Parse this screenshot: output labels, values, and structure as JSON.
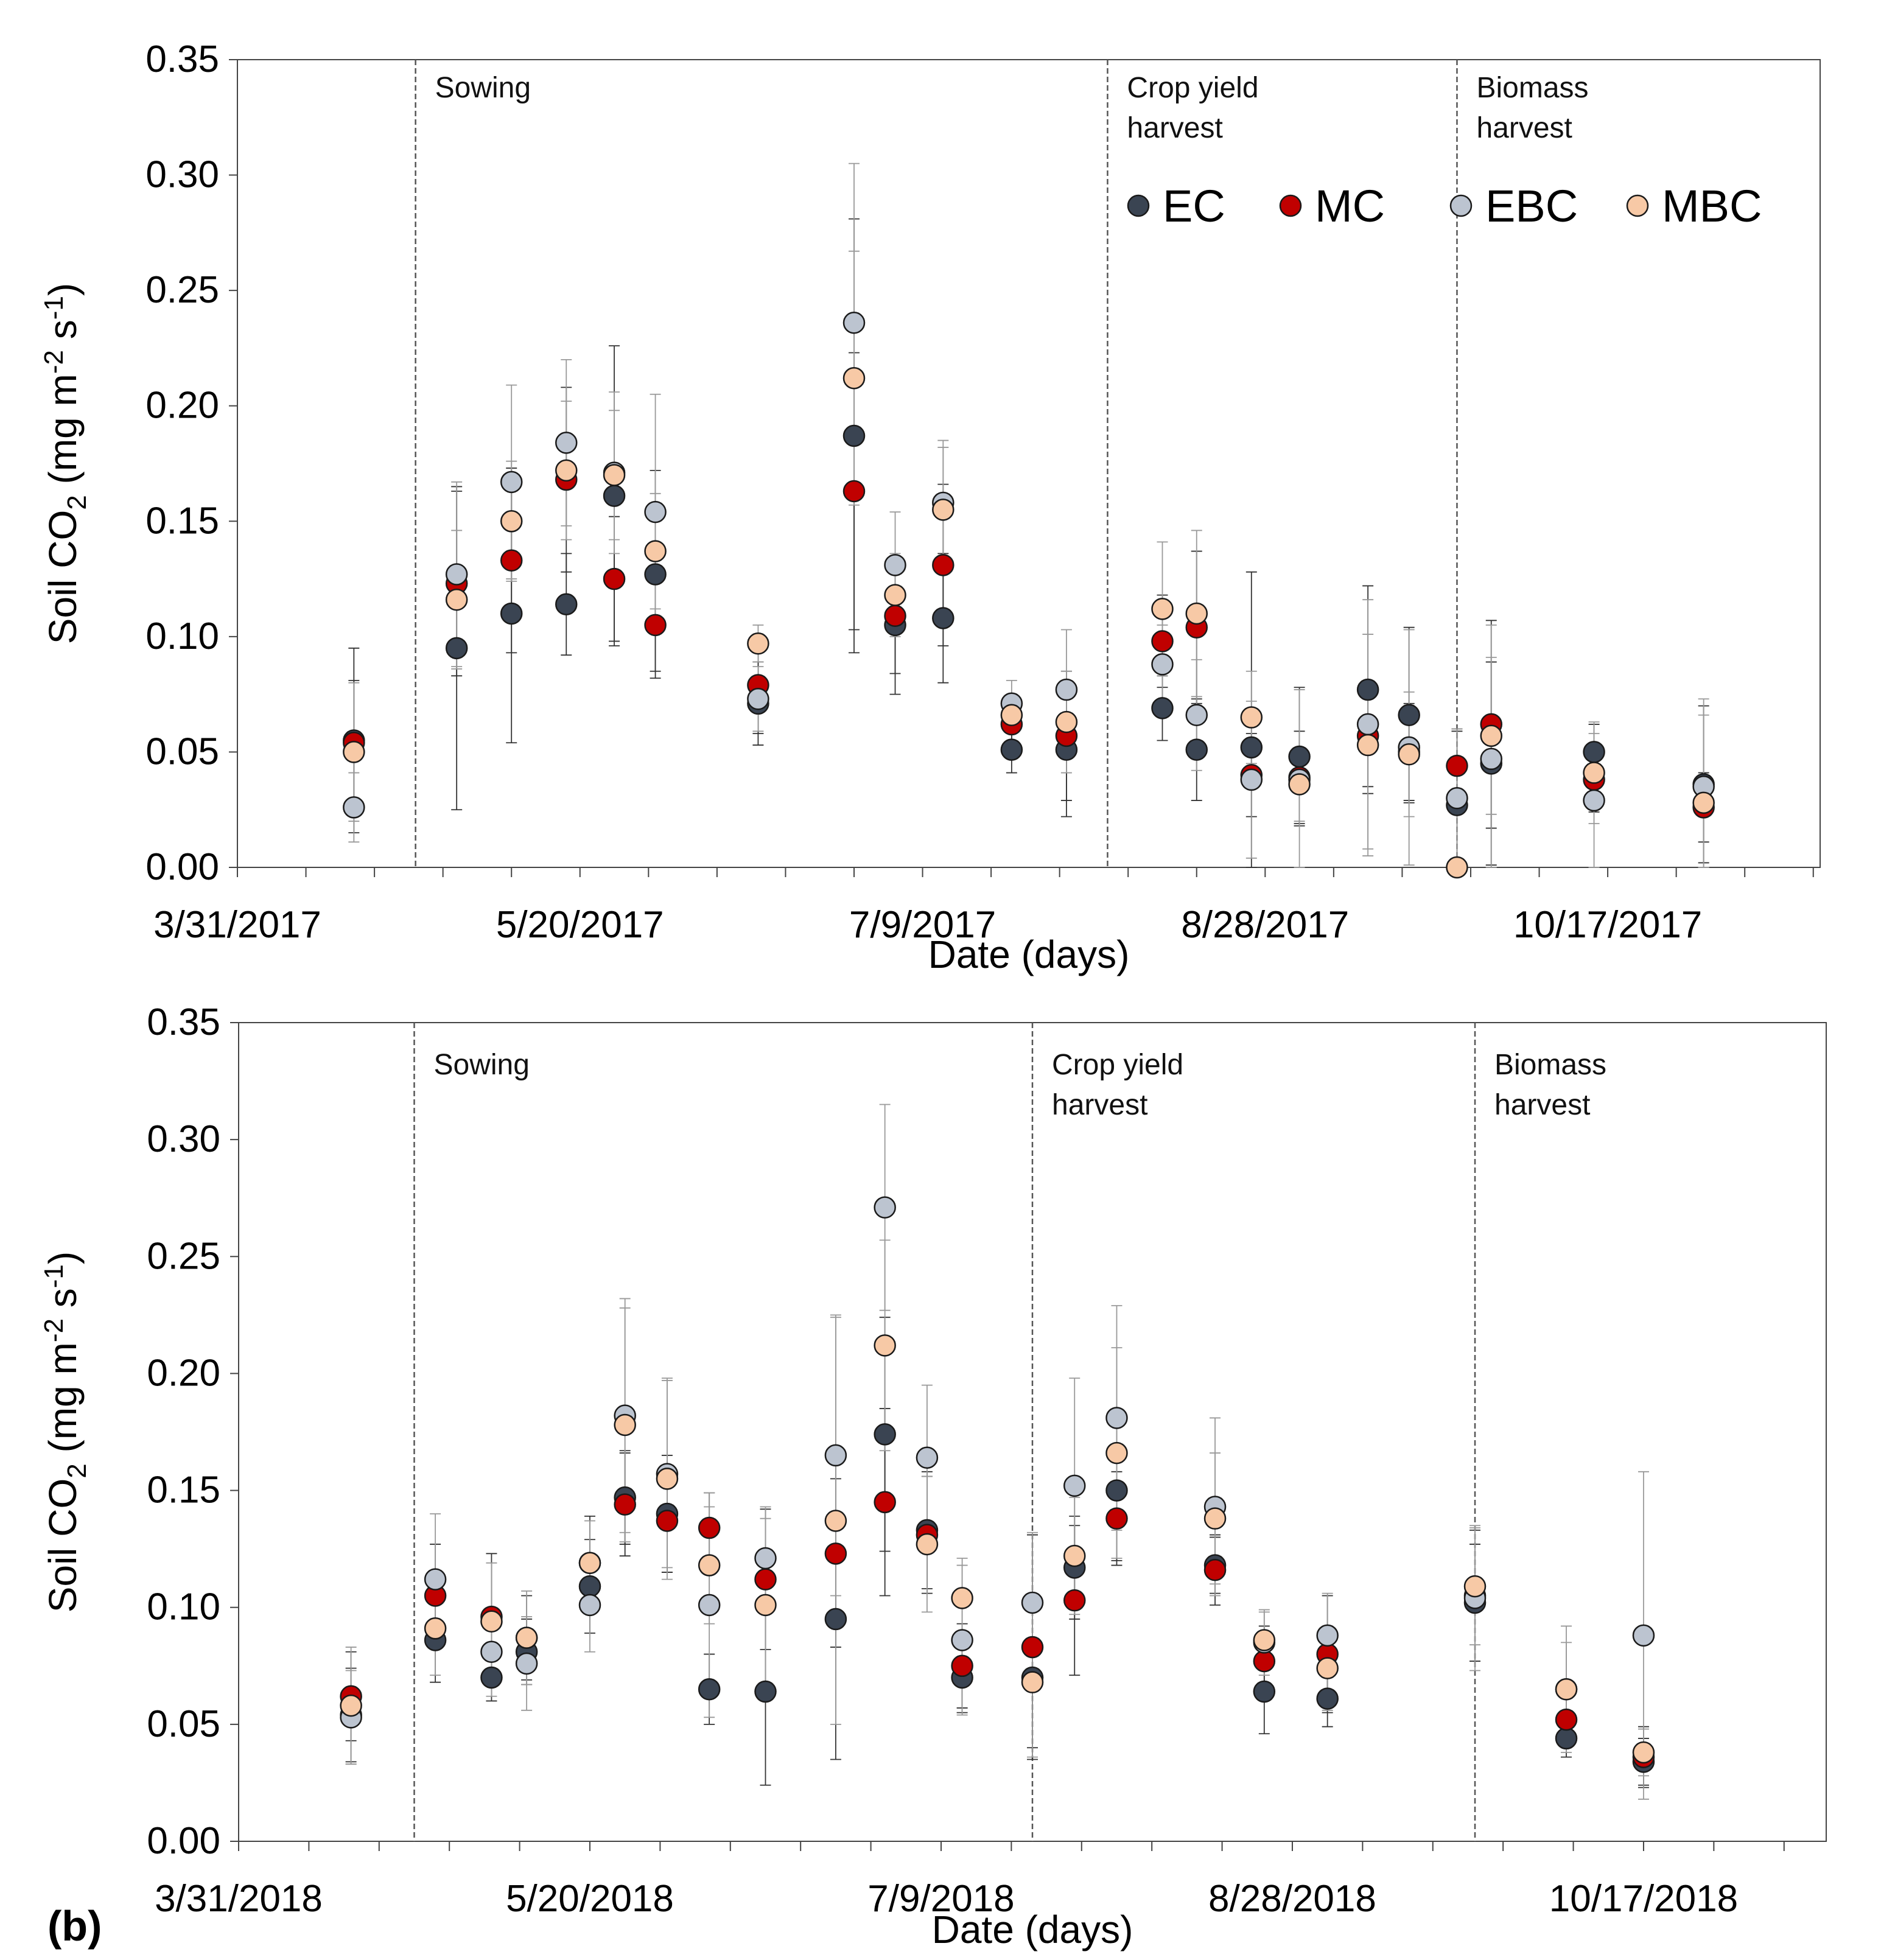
{
  "figure": {
    "panel_b_label": "(b)"
  },
  "series_meta": [
    {
      "name": "EC",
      "color": "#3a4452"
    },
    {
      "name": "MC",
      "color": "#c00000"
    },
    {
      "name": "EBC",
      "color": "#bcc4d0"
    },
    {
      "name": "MBC",
      "color": "#f7c9a6"
    }
  ],
  "chart_data": [
    {
      "type": "scatter",
      "title": "",
      "xlabel": "Date (days)",
      "ylabel": "Soil CO2 (mg m-2 s-1)",
      "ylabel_main": "Soil CO",
      "ylabel_sub": "2",
      "ylabel_units_a": " (mg m",
      "ylabel_sup1": "-2",
      "ylabel_units_b": " s",
      "ylabel_sup2": "-1",
      "ylabel_units_c": ")",
      "xlim": [
        "2017-03-31",
        "2017-11-17"
      ],
      "ylim": [
        0,
        0.35
      ],
      "y_ticks": [
        "0.00",
        "0.05",
        "0.10",
        "0.15",
        "0.20",
        "0.25",
        "0.30",
        "0.35"
      ],
      "x_ticks": [
        "3/31/2017",
        "5/20/2017",
        "7/9/2017",
        "8/28/2017",
        "10/17/2017"
      ],
      "events": [
        {
          "date": "2017-04-26",
          "line1": "Sowing",
          "line2": ""
        },
        {
          "date": "2017-08-05",
          "line1": "Crop yield",
          "line2": "harvest"
        },
        {
          "date": "2017-09-25",
          "line1": "Biomass",
          "line2": "harvest"
        }
      ],
      "legend": [
        "EC",
        "MC",
        "EBC",
        "MBC"
      ],
      "dates": [
        "2017-04-17",
        "2017-05-02",
        "2017-05-10",
        "2017-05-18",
        "2017-05-25",
        "2017-05-31",
        "2017-06-15",
        "2017-06-29",
        "2017-07-05",
        "2017-07-12",
        "2017-07-22",
        "2017-07-30",
        "2017-08-13",
        "2017-08-18",
        "2017-08-26",
        "2017-09-02",
        "2017-09-12",
        "2017-09-18",
        "2017-09-25",
        "2017-09-30",
        "2017-10-15",
        "2017-10-31"
      ],
      "series": [
        {
          "name": "EC",
          "values": [
            0.055,
            0.095,
            0.11,
            0.114,
            0.161,
            0.127,
            0.071,
            0.187,
            0.105,
            0.108,
            0.051,
            0.051,
            0.069,
            0.051,
            0.052,
            0.048,
            0.077,
            0.066,
            0.027,
            0.045,
            0.05,
            0.036
          ],
          "errors": [
            0.04,
            0.07,
            0.056,
            0.022,
            0.065,
            0.045,
            0.018,
            0.094,
            0.03,
            0.028,
            0.01,
            0.029,
            0.014,
            0.022,
            0.076,
            0.03,
            0.045,
            0.038,
            0.032,
            0.044,
            0.012,
            0.034
          ]
        },
        {
          "name": "MC",
          "values": [
            0.054,
            0.123,
            0.133,
            0.168,
            0.125,
            0.105,
            0.079,
            0.163,
            0.109,
            0.131,
            0.062,
            0.057,
            0.098,
            0.104,
            0.04,
            0.039,
            0.057,
            0.05,
            0.044,
            0.062,
            0.038,
            0.026
          ],
          "errors": [
            0.027,
            0.04,
            0.04,
            0.04,
            0.027,
            0.02,
            0.021,
            0.06,
            0.025,
            0.035,
            0.01,
            0.028,
            0.02,
            0.033,
            0.018,
            0.02,
            0.022,
            0.021,
            0.016,
            0.045,
            0.014,
            0.015
          ]
        },
        {
          "name": "EBC",
          "values": [
            0.026,
            0.127,
            0.167,
            0.184,
            0.171,
            0.154,
            0.073,
            0.236,
            0.131,
            0.158,
            0.071,
            0.077,
            0.088,
            0.066,
            0.038,
            0.038,
            0.062,
            0.052,
            0.03,
            0.047,
            0.029,
            0.035
          ],
          "errors": [
            0.015,
            0.04,
            0.042,
            0.036,
            0.035,
            0.051,
            0.014,
            0.069,
            0.023,
            0.027,
            0.01,
            0.026,
            0.017,
            0.024,
            0.034,
            0.039,
            0.054,
            0.051,
            0.03,
            0.058,
            0.029,
            0.038
          ]
        },
        {
          "name": "MBC",
          "values": [
            0.05,
            0.116,
            0.15,
            0.172,
            0.17,
            0.137,
            0.097,
            0.212,
            0.118,
            0.155,
            0.066,
            0.063,
            0.112,
            0.11,
            0.065,
            0.036,
            0.053,
            0.049,
            0.0,
            0.057,
            0.041,
            0.028
          ],
          "errors": [
            0.03,
            0.03,
            0.026,
            0.03,
            0.028,
            0.025,
            0.008,
            0.055,
            0.018,
            0.027,
            0.008,
            0.022,
            0.029,
            0.036,
            0.02,
            0.016,
            0.048,
            0.027,
            0.0,
            0.034,
            0.022,
            0.038
          ]
        }
      ]
    },
    {
      "type": "scatter",
      "title": "",
      "xlabel": "Date (days)",
      "ylabel": "Soil CO2 (mg m-2 s-1)",
      "ylabel_main": "Soil CO",
      "ylabel_sub": "2",
      "ylabel_units_a": " (mg m",
      "ylabel_sup1": "-2",
      "ylabel_units_b": " s",
      "ylabel_sup2": "-1",
      "ylabel_units_c": ")",
      "xlim": [
        "2018-03-31",
        "2018-11-12"
      ],
      "ylim": [
        0,
        0.35
      ],
      "y_ticks": [
        "0.00",
        "0.05",
        "0.10",
        "0.15",
        "0.20",
        "0.25",
        "0.30",
        "0.35"
      ],
      "x_ticks": [
        "3/31/2018",
        "5/20/2018",
        "7/9/2018",
        "8/28/2018",
        "10/17/2018"
      ],
      "events": [
        {
          "date": "2018-04-25",
          "line1": "Sowing",
          "line2": ""
        },
        {
          "date": "2018-07-22",
          "line1": "Crop yield",
          "line2": "harvest"
        },
        {
          "date": "2018-09-23",
          "line1": "Biomass",
          "line2": "harvest"
        }
      ],
      "legend": [],
      "dates": [
        "2018-04-16",
        "2018-04-28",
        "2018-05-06",
        "2018-05-11",
        "2018-05-20",
        "2018-05-25",
        "2018-05-31",
        "2018-06-06",
        "2018-06-14",
        "2018-06-24",
        "2018-07-01",
        "2018-07-07",
        "2018-07-12",
        "2018-07-22",
        "2018-07-28",
        "2018-08-03",
        "2018-08-17",
        "2018-08-24",
        "2018-09-02",
        "2018-09-23",
        "2018-10-06",
        "2018-10-17"
      ],
      "series": [
        {
          "name": "EC",
          "values": [
            0.054,
            0.086,
            0.07,
            0.081,
            0.109,
            0.147,
            0.14,
            0.065,
            0.064,
            0.095,
            0.174,
            0.133,
            0.07,
            0.07,
            0.117,
            0.15,
            0.118,
            0.064,
            0.061,
            0.102,
            0.044,
            0.034
          ],
          "errors": [
            0.02,
            0.018,
            0.01,
            0.014,
            0.02,
            0.02,
            0.025,
            0.015,
            0.04,
            0.06,
            0.05,
            0.025,
            0.015,
            0.03,
            0.022,
            0.03,
            0.012,
            0.018,
            0.012,
            0.025,
            0.008,
            0.01
          ]
        },
        {
          "name": "MC",
          "values": [
            0.062,
            0.105,
            0.096,
            0.087,
            0.119,
            0.144,
            0.137,
            0.134,
            0.112,
            0.123,
            0.145,
            0.131,
            0.075,
            0.083,
            0.103,
            0.138,
            0.116,
            0.077,
            0.08,
            0.105,
            0.052,
            0.036
          ],
          "errors": [
            0.019,
            0.022,
            0.027,
            0.018,
            0.02,
            0.022,
            0.022,
            0.015,
            0.03,
            0.04,
            0.04,
            0.025,
            0.018,
            0.048,
            0.032,
            0.02,
            0.015,
            0.015,
            0.025,
            0.028,
            0.012,
            0.013
          ]
        },
        {
          "name": "EBC",
          "values": [
            0.053,
            0.112,
            0.081,
            0.076,
            0.101,
            0.182,
            0.157,
            0.101,
            0.121,
            0.165,
            0.271,
            0.164,
            0.086,
            0.102,
            0.152,
            0.181,
            0.143,
            0.085,
            0.088,
            0.104,
            0.065,
            0.088
          ],
          "errors": [
            0.02,
            0.028,
            0.019,
            0.02,
            0.02,
            0.05,
            0.04,
            0.048,
            0.022,
            0.06,
            0.044,
            0.031,
            0.032,
            0.03,
            0.046,
            0.048,
            0.038,
            0.014,
            0.018,
            0.031,
            0.02,
            0.07
          ]
        },
        {
          "name": "MBC",
          "values": [
            0.058,
            0.091,
            0.094,
            0.087,
            0.119,
            0.178,
            0.155,
            0.118,
            0.101,
            0.137,
            0.212,
            0.127,
            0.104,
            0.068,
            0.122,
            0.166,
            0.138,
            0.086,
            0.074,
            0.109,
            0.065,
            0.038
          ],
          "errors": [
            0.025,
            0.02,
            0.025,
            0.02,
            0.018,
            0.05,
            0.043,
            0.025,
            0.037,
            0.087,
            0.045,
            0.029,
            0.017,
            0.032,
            0.025,
            0.045,
            0.028,
            0.012,
            0.018,
            0.025,
            0.027,
            0.01
          ]
        }
      ]
    }
  ]
}
